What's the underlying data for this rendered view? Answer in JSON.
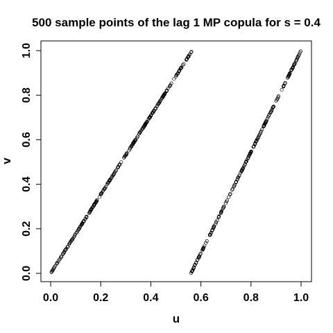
{
  "chart_data": {
    "type": "scatter",
    "title": "500 sample points of the lag 1 MP copula for s = 0.4",
    "xlabel": "u",
    "ylabel": "v",
    "xlim": [
      0,
      1
    ],
    "ylim": [
      0,
      1
    ],
    "x_ticks": [
      "0.0",
      "0.2",
      "0.4",
      "0.6",
      "0.8",
      "1.0"
    ],
    "y_ticks": [
      "0.0",
      "0.2",
      "0.4",
      "0.6",
      "0.8",
      "1.0"
    ],
    "grid": false,
    "legend": "none",
    "n_points": 500,
    "segments": [
      {
        "x": [
          0.0,
          0.565
        ],
        "y": [
          0.0,
          1.0
        ],
        "share": 0.565
      },
      {
        "x": [
          0.56,
          1.0
        ],
        "y": [
          0.0,
          1.0
        ],
        "share": 0.435
      }
    ]
  }
}
